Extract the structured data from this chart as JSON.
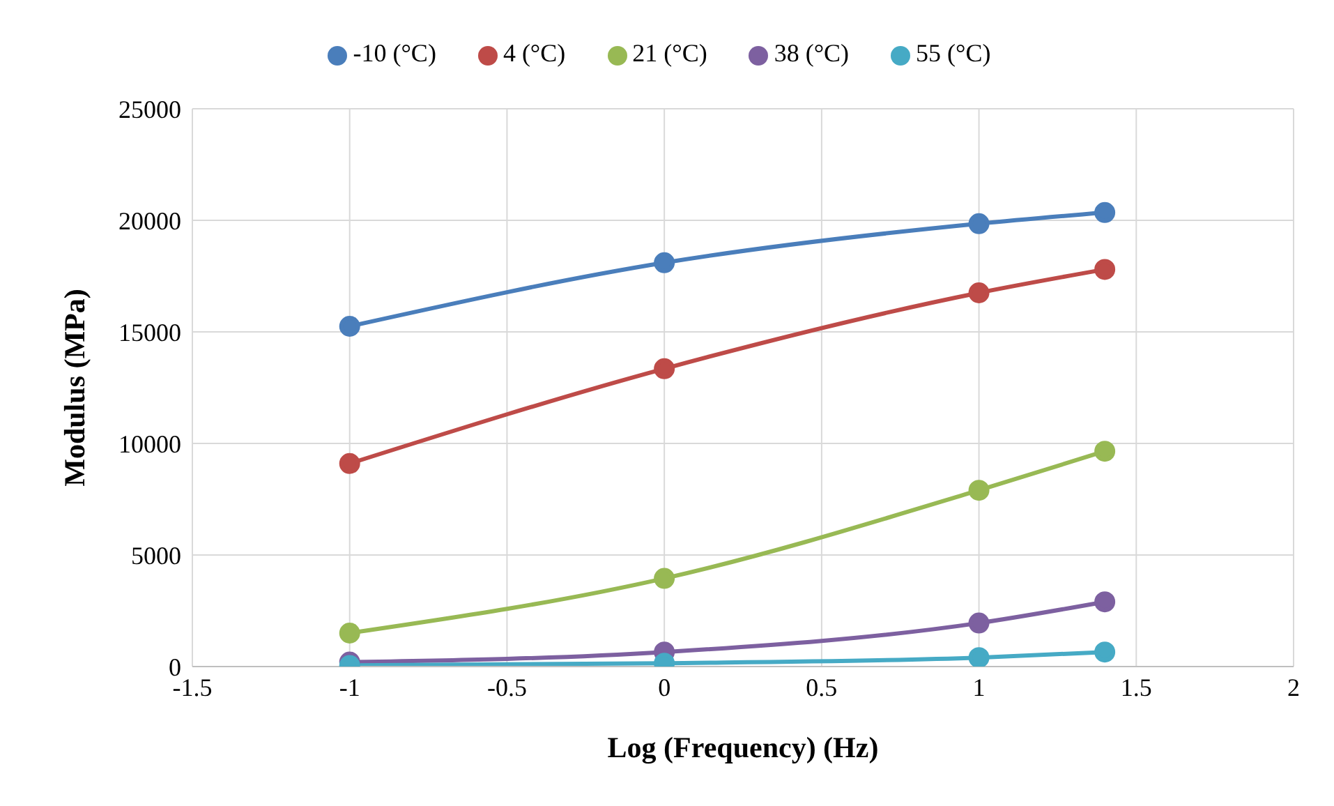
{
  "chart_data": {
    "type": "line",
    "xlabel": "Log (Frequency) (Hz)",
    "ylabel": "Modulus (MPa)",
    "x": [
      -1,
      0,
      1,
      1.4
    ],
    "series": [
      {
        "name": "-10 (°C)",
        "color": "#4a7ebb",
        "values": [
          15250,
          18100,
          19850,
          20350
        ]
      },
      {
        "name": "4 (°C)",
        "color": "#be4b48",
        "values": [
          9100,
          13350,
          16750,
          17800
        ]
      },
      {
        "name": "21 (°C)",
        "color": "#98b954",
        "values": [
          1500,
          3950,
          7900,
          9650
        ]
      },
      {
        "name": "38 (°C)",
        "color": "#7d60a0",
        "values": [
          200,
          650,
          1950,
          2900
        ]
      },
      {
        "name": "55 (°C)",
        "color": "#46aac5",
        "values": [
          50,
          150,
          400,
          650
        ]
      }
    ],
    "xlim": [
      -1.5,
      2
    ],
    "xticks": [
      -1.5,
      -1,
      -0.5,
      0,
      0.5,
      1,
      1.5,
      2
    ],
    "ylim": [
      0,
      25000
    ],
    "yticks": [
      0,
      5000,
      10000,
      15000,
      20000,
      25000
    ],
    "grid": true,
    "legend": "top",
    "marker": "circle",
    "line_style": "solid"
  }
}
